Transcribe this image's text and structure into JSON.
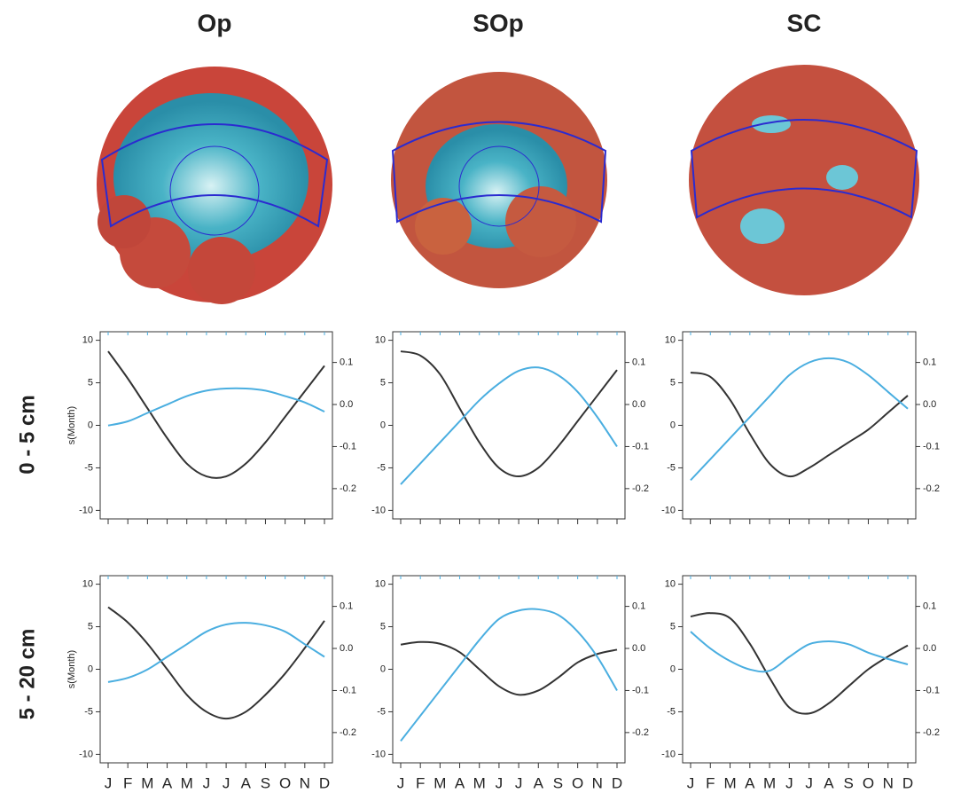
{
  "columns": [
    "Op",
    "SOp",
    "SC"
  ],
  "rows": [
    "0 - 5 cm",
    "5 - 20 cm"
  ],
  "chart_data": [
    {
      "type": "line",
      "ylabel": "s(Month)",
      "categories": [
        null,
        null,
        null,
        null,
        null,
        null,
        null,
        null,
        null,
        null,
        null,
        null
      ],
      "ylim": [
        -11,
        11
      ],
      "yticks": [
        -10,
        -5,
        0,
        5,
        10
      ],
      "y2lim": [
        -0.272,
        0.173
      ],
      "y2ticks": [
        -0.2,
        -0.1,
        {
          "value": 0,
          "label": "0.0"
        },
        0.1
      ],
      "series": [
        {
          "color": "#333333",
          "values": [
            8.7,
            5.5,
            2,
            -1.5,
            -4.5,
            -6,
            -6,
            -4.5,
            -2,
            1,
            4,
            7
          ]
        },
        {
          "color": "#4aaee0",
          "axis": "y2",
          "values": [
            -0.05,
            -0.04,
            -0.02,
            0.0,
            0.02,
            0.033,
            0.038,
            0.038,
            0.033,
            0.02,
            0.005,
            -0.017
          ]
        }
      ]
    },
    {
      "type": "line",
      "categories": [
        null,
        null,
        null,
        null,
        null,
        null,
        null,
        null,
        null,
        null,
        null,
        null
      ],
      "ylim": [
        -11,
        11
      ],
      "yticks": [
        -10,
        -5,
        0,
        5,
        10
      ],
      "y2lim": [
        -0.272,
        0.173
      ],
      "y2ticks": [
        -0.2,
        -0.1,
        {
          "value": 0,
          "label": "0.0"
        },
        0.1
      ],
      "series": [
        {
          "color": "#333333",
          "values": [
            8.7,
            8.2,
            6,
            2,
            -2,
            -5,
            -6,
            -5,
            -2.5,
            0.5,
            3.5,
            6.5
          ]
        },
        {
          "color": "#4aaee0",
          "axis": "y2",
          "values": [
            -0.19,
            -0.14,
            -0.09,
            -0.04,
            0.01,
            0.05,
            0.08,
            0.088,
            0.07,
            0.03,
            -0.03,
            -0.1
          ]
        }
      ]
    },
    {
      "type": "line",
      "categories": [
        null,
        null,
        null,
        null,
        null,
        null,
        null,
        null,
        null,
        null,
        null,
        null
      ],
      "ylim": [
        -11,
        11
      ],
      "yticks": [
        -10,
        -5,
        0,
        5,
        10
      ],
      "y2lim": [
        -0.272,
        0.173
      ],
      "y2ticks": [
        -0.2,
        -0.1,
        {
          "value": 0,
          "label": "0.0"
        },
        0.1
      ],
      "series": [
        {
          "color": "#333333",
          "values": [
            6.2,
            5.7,
            3,
            -1,
            -4.5,
            -6,
            -5,
            -3.5,
            -2,
            -0.5,
            1.5,
            3.5
          ]
        },
        {
          "color": "#4aaee0",
          "axis": "y2",
          "values": [
            -0.18,
            -0.13,
            -0.08,
            -0.03,
            0.02,
            0.07,
            0.1,
            0.11,
            0.1,
            0.07,
            0.03,
            -0.01
          ]
        }
      ]
    },
    {
      "type": "line",
      "ylabel": "s(Month)",
      "categories": [
        "J",
        "F",
        "M",
        "A",
        "M",
        "J",
        "J",
        "A",
        "S",
        "O",
        "N",
        "D"
      ],
      "ylim": [
        -11,
        11
      ],
      "yticks": [
        -10,
        -5,
        0,
        5,
        10
      ],
      "y2lim": [
        -0.272,
        0.173
      ],
      "y2ticks": [
        -0.2,
        -0.1,
        {
          "value": 0,
          "label": "0.0"
        },
        0.1
      ],
      "series": [
        {
          "color": "#333333",
          "values": [
            7.3,
            5.5,
            3,
            0,
            -3,
            -5,
            -5.8,
            -5,
            -3,
            -0.5,
            2.5,
            5.7
          ]
        },
        {
          "color": "#4aaee0",
          "axis": "y2",
          "values": [
            -0.08,
            -0.07,
            -0.05,
            -0.02,
            0.01,
            0.04,
            0.057,
            0.061,
            0.055,
            0.04,
            0.01,
            -0.02
          ]
        }
      ]
    },
    {
      "type": "line",
      "categories": [
        "J",
        "F",
        "M",
        "A",
        "M",
        "J",
        "J",
        "A",
        "S",
        "O",
        "N",
        "D"
      ],
      "ylim": [
        -11,
        11
      ],
      "yticks": [
        -10,
        -5,
        0,
        5,
        10
      ],
      "y2lim": [
        -0.272,
        0.173
      ],
      "y2ticks": [
        -0.2,
        -0.1,
        {
          "value": 0,
          "label": "0.0"
        },
        0.1
      ],
      "series": [
        {
          "color": "#333333",
          "values": [
            2.9,
            3.2,
            3,
            2,
            0,
            -2,
            -3,
            -2.5,
            -1,
            0.8,
            1.8,
            2.3
          ]
        },
        {
          "color": "#4aaee0",
          "axis": "y2",
          "values": [
            -0.22,
            -0.16,
            -0.1,
            -0.04,
            0.02,
            0.07,
            0.09,
            0.093,
            0.08,
            0.04,
            -0.02,
            -0.1
          ]
        }
      ]
    },
    {
      "type": "line",
      "categories": [
        "J",
        "F",
        "M",
        "A",
        "M",
        "J",
        "J",
        "A",
        "S",
        "O",
        "N",
        "D"
      ],
      "ylim": [
        -11,
        11
      ],
      "yticks": [
        -10,
        -5,
        0,
        5,
        10
      ],
      "y2lim": [
        -0.272,
        0.173
      ],
      "y2ticks": [
        -0.2,
        -0.1,
        {
          "value": 0,
          "label": "0.0"
        },
        0.1
      ],
      "series": [
        {
          "color": "#333333",
          "values": [
            6.2,
            6.6,
            6,
            3,
            -1,
            -4.5,
            -5.2,
            -4,
            -2,
            0,
            1.5,
            2.8
          ]
        },
        {
          "color": "#4aaee0",
          "axis": "y2",
          "values": [
            0.04,
            0.0,
            -0.03,
            -0.05,
            -0.053,
            -0.02,
            0.01,
            0.017,
            0.01,
            -0.01,
            -0.025,
            -0.038
          ]
        }
      ]
    }
  ]
}
